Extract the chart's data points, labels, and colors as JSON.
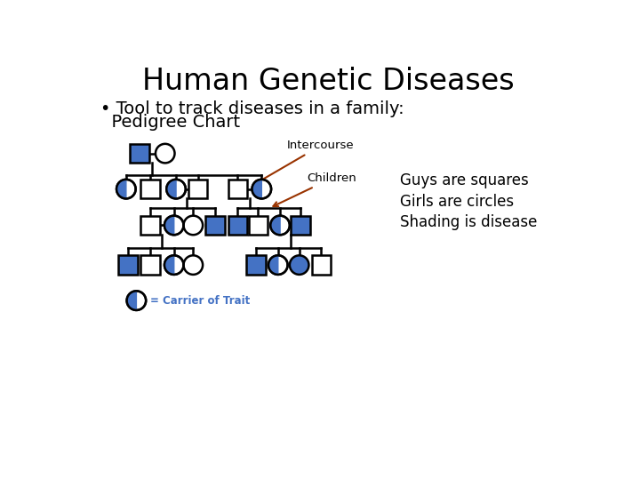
{
  "title": "Human Genetic Diseases",
  "bullet_text1": "• Tool to track diseases in a family:",
  "bullet_text2": "  Pedigree Chart",
  "blue": "#4472C4",
  "white": "#FFFFFF",
  "black": "#000000",
  "red_arrow": "#993300",
  "legend_texts": [
    "Guys are squares",
    "Girls are circles",
    "Shading is disease"
  ],
  "carrier_label": "= Carrier of Trait",
  "intercourse_label": "Intercourse",
  "children_label": "Children",
  "bg_color": "#FFFFFF",
  "S": 14,
  "lw": 1.8
}
